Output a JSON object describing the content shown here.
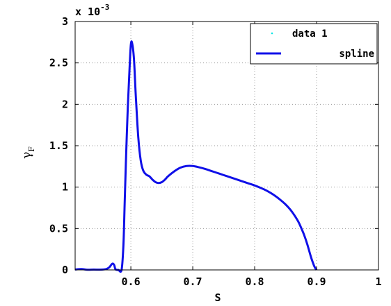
{
  "chart_data": {
    "type": "line",
    "xlabel": "S",
    "ylabel": "γ",
    "ylabel_subscript": "F",
    "exponent": "x 10",
    "exponent_power": "-3",
    "xlim": [
      0.51,
      1.0
    ],
    "ylim": [
      0,
      3
    ],
    "x_ticks": [
      "0.6",
      "0.7",
      "0.8",
      "0.9",
      "1"
    ],
    "x_tick_values": [
      0.6,
      0.7,
      0.8,
      0.9,
      1.0
    ],
    "y_ticks": [
      "0",
      "0.5",
      "1",
      "1.5",
      "2",
      "2.5",
      "3"
    ],
    "y_tick_values": [
      0,
      0.5,
      1,
      1.5,
      2,
      2.5,
      3
    ],
    "grid": true,
    "legend_position": "top-right",
    "colors": {
      "spline": "#1010e8",
      "data1": "#00e5e5",
      "grid": "#9a9a9a"
    },
    "series": [
      {
        "name": "data 1",
        "style": "points",
        "values": []
      },
      {
        "name": "spline",
        "style": "line",
        "x": [
          0.51,
          0.52,
          0.53,
          0.54,
          0.55,
          0.56,
          0.565,
          0.57,
          0.573,
          0.575,
          0.578,
          0.58,
          0.585,
          0.588,
          0.59,
          0.592,
          0.595,
          0.598,
          0.6,
          0.602,
          0.605,
          0.608,
          0.612,
          0.616,
          0.62,
          0.625,
          0.63,
          0.635,
          0.64,
          0.645,
          0.65,
          0.655,
          0.66,
          0.67,
          0.68,
          0.69,
          0.7,
          0.71,
          0.72,
          0.73,
          0.74,
          0.75,
          0.76,
          0.77,
          0.78,
          0.79,
          0.8,
          0.81,
          0.82,
          0.83,
          0.84,
          0.85,
          0.86,
          0.87,
          0.875,
          0.88,
          0.885,
          0.89,
          0.893,
          0.896,
          0.898,
          0.9
        ],
        "y": [
          0.005,
          0.01,
          0.002,
          0.004,
          0.003,
          0.01,
          0.03,
          0.075,
          0.06,
          0.01,
          0.0,
          0.0,
          0.0,
          0.3,
          0.8,
          1.3,
          1.95,
          2.45,
          2.72,
          2.74,
          2.55,
          2.1,
          1.6,
          1.32,
          1.2,
          1.15,
          1.13,
          1.09,
          1.06,
          1.05,
          1.06,
          1.09,
          1.13,
          1.19,
          1.235,
          1.255,
          1.255,
          1.24,
          1.22,
          1.195,
          1.17,
          1.145,
          1.12,
          1.095,
          1.07,
          1.045,
          1.02,
          0.99,
          0.955,
          0.91,
          0.855,
          0.79,
          0.705,
          0.59,
          0.51,
          0.42,
          0.31,
          0.18,
          0.11,
          0.05,
          0.02,
          0.0
        ]
      }
    ]
  }
}
